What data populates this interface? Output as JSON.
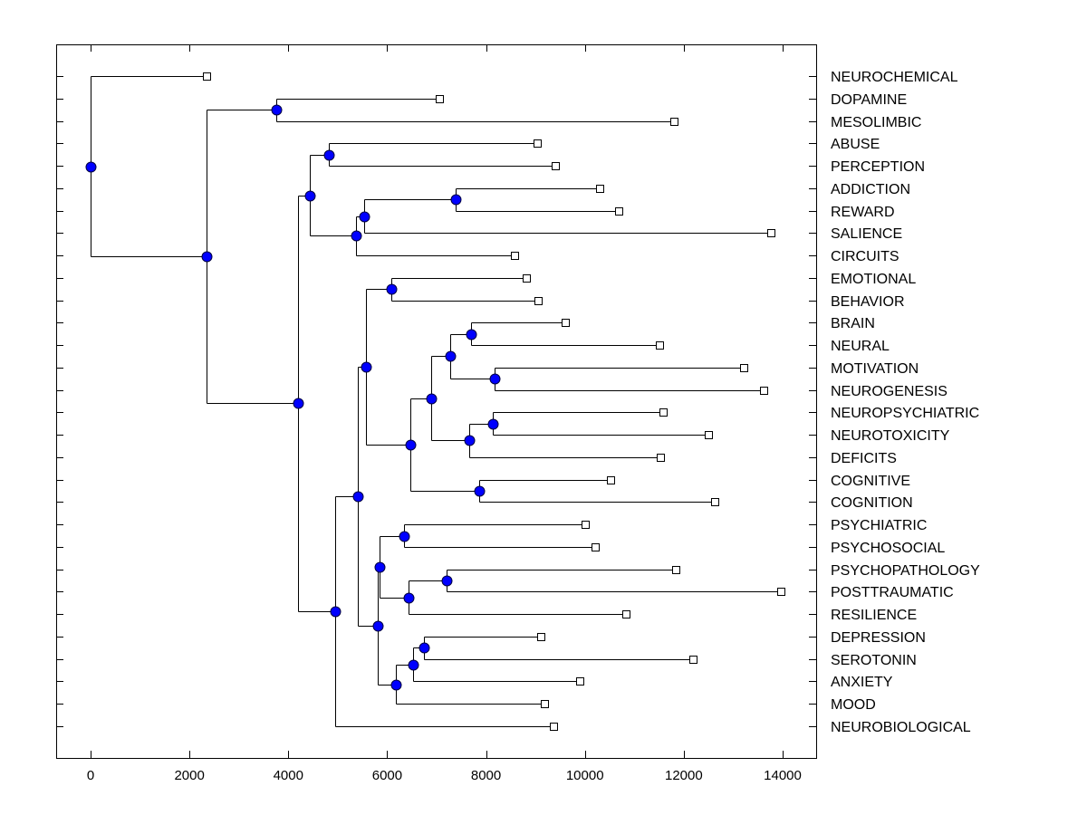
{
  "chart_data": {
    "type": "dendrogram",
    "title": "",
    "xlabel": "",
    "ylabel": "",
    "xlim": [
      -700,
      14700
    ],
    "xticks": [
      0,
      2000,
      4000,
      6000,
      8000,
      10000,
      12000,
      14000
    ],
    "xtick_labels": [
      "0",
      "2000",
      "4000",
      "6000",
      "8000",
      "10000",
      "12000",
      "14000"
    ],
    "grid": false,
    "label_position": "right",
    "colors": {
      "node": "#0000ff",
      "line": "#000000",
      "leaf_marker": "#ffffff"
    },
    "leaves": [
      {
        "label": "NEUROCHEMICAL",
        "value": 2345
      },
      {
        "label": "DOPAMINE",
        "value": 7055
      },
      {
        "label": "MESOLIMBIC",
        "value": 11800
      },
      {
        "label": "ABUSE",
        "value": 9030
      },
      {
        "label": "PERCEPTION",
        "value": 9400
      },
      {
        "label": "ADDICTION",
        "value": 10300
      },
      {
        "label": "REWARD",
        "value": 10680
      },
      {
        "label": "SALIENCE",
        "value": 13760
      },
      {
        "label": "CIRCUITS",
        "value": 8580
      },
      {
        "label": "EMOTIONAL",
        "value": 8810
      },
      {
        "label": "BEHAVIOR",
        "value": 9050
      },
      {
        "label": "BRAIN",
        "value": 9600
      },
      {
        "label": "NEURAL",
        "value": 11510
      },
      {
        "label": "MOTIVATION",
        "value": 13210
      },
      {
        "label": "NEUROGENESIS",
        "value": 13610
      },
      {
        "label": "NEUROPSYCHIATRIC",
        "value": 11580
      },
      {
        "label": "NEUROTOXICITY",
        "value": 12500
      },
      {
        "label": "DEFICITS",
        "value": 11530
      },
      {
        "label": "COGNITIVE",
        "value": 10520
      },
      {
        "label": "COGNITION",
        "value": 12630
      },
      {
        "label": "PSYCHIATRIC",
        "value": 10000
      },
      {
        "label": "PSYCHOSOCIAL",
        "value": 10210
      },
      {
        "label": "PSYCHOPATHOLOGY",
        "value": 11840
      },
      {
        "label": "POSTTRAUMATIC",
        "value": 13960
      },
      {
        "label": "RESILIENCE",
        "value": 10830
      },
      {
        "label": "DEPRESSION",
        "value": 9110
      },
      {
        "label": "SEROTONIN",
        "value": 12190
      },
      {
        "label": "ANXIETY",
        "value": 9900
      },
      {
        "label": "MOOD",
        "value": 9180
      },
      {
        "label": "NEUROBIOLOGICAL",
        "value": 9360
      }
    ],
    "tree": {
      "value": 0,
      "children": [
        0,
        {
          "value": 2345,
          "children": [
            {
              "value": 3760,
              "children": [
                1,
                2
              ]
            },
            {
              "value": 4195,
              "children": [
                {
                  "value": 4435,
                  "children": [
                    {
                      "value": 4820,
                      "children": [
                        3,
                        4
                      ]
                    },
                    {
                      "value": 5370,
                      "children": [
                        {
                          "value": 5535,
                          "children": [
                            {
                              "value": 7385,
                              "children": [
                                5,
                                6
                              ]
                            },
                            7
                          ]
                        },
                        8
                      ]
                    }
                  ]
                },
                {
                  "value": 4950,
                  "children": [
                    {
                      "value": 5405,
                      "children": [
                        {
                          "value": 5570,
                          "children": [
                            {
                              "value": 6085,
                              "children": [
                                9,
                                10
                              ]
                            },
                            {
                              "value": 6470,
                              "children": [
                                {
                                  "value": 6890,
                                  "children": [
                                    {
                                      "value": 7275,
                                      "children": [
                                        {
                                          "value": 7695,
                                          "children": [
                                            11,
                                            12
                                          ]
                                        },
                                        {
                                          "value": 8175,
                                          "children": [
                                            13,
                                            14
                                          ]
                                        }
                                      ]
                                    },
                                    {
                                      "value": 7660,
                                      "children": [
                                        {
                                          "value": 8135,
                                          "children": [
                                            15,
                                            16
                                          ]
                                        },
                                        17
                                      ]
                                    }
                                  ]
                                },
                                {
                                  "value": 7860,
                                  "children": [
                                    18,
                                    19
                                  ]
                                }
                              ]
                            }
                          ]
                        },
                        {
                          "value": 5810,
                          "children": [
                            {
                              "value": 5845,
                              "children": [
                                {
                                  "value": 6340,
                                  "children": [
                                    20,
                                    21
                                  ]
                                },
                                {
                                  "value": 6430,
                                  "children": [
                                    {
                                      "value": 7200,
                                      "children": [
                                        22,
                                        23
                                      ]
                                    },
                                    24
                                  ]
                                }
                              ]
                            },
                            {
                              "value": 6175,
                              "children": [
                                {
                                  "value": 6525,
                                  "children": [
                                    {
                                      "value": 6745,
                                      "children": [
                                        25,
                                        26
                                      ]
                                    },
                                    27
                                  ]
                                },
                                28
                              ]
                            }
                          ]
                        }
                      ]
                    },
                    29
                  ]
                }
              ]
            }
          ]
        }
      ]
    }
  }
}
